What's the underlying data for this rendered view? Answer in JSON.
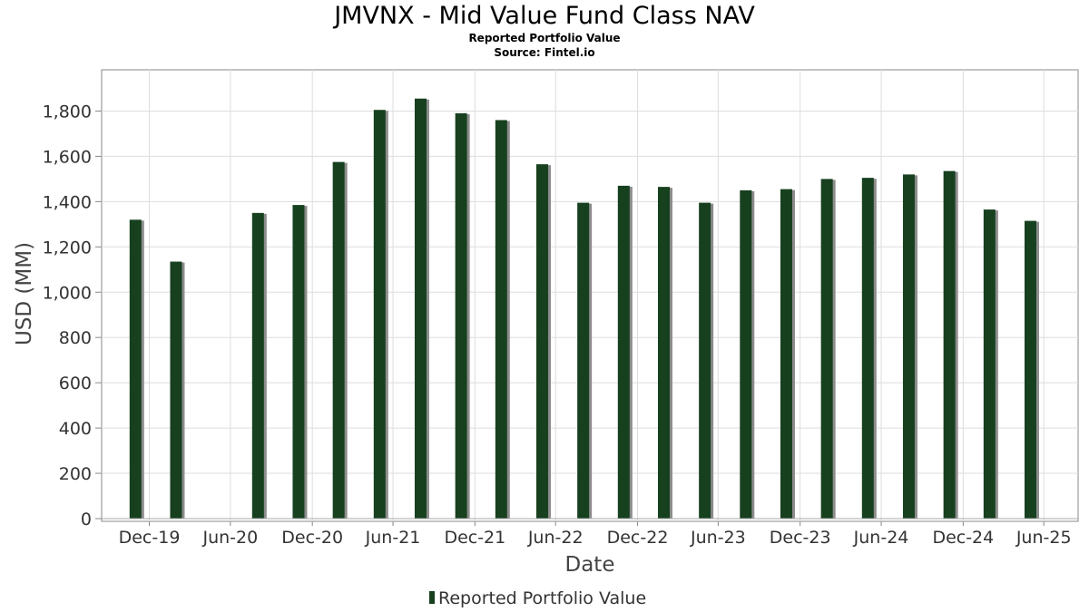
{
  "chart_data": {
    "type": "bar",
    "title": "JMVNX - Mid Value Fund Class NAV",
    "subtitle": "Reported Portfolio Value",
    "source": "Source: Fintel.io",
    "xlabel": "Date",
    "ylabel": "USD (MM)",
    "ylim": [
      0,
      1950
    ],
    "yticks": [
      0,
      200,
      400,
      600,
      800,
      1000,
      1200,
      1400,
      1600,
      1800
    ],
    "ytick_labels": [
      "0",
      "200",
      "400",
      "600",
      "800",
      "1,000",
      "1,200",
      "1,400",
      "1,600",
      "1,800"
    ],
    "xlim": [
      "2019-09-15",
      "2025-09-15"
    ],
    "xticks": [
      "2019-12-31",
      "2020-06-30",
      "2020-12-31",
      "2021-06-30",
      "2021-12-31",
      "2022-06-30",
      "2022-12-31",
      "2023-06-30",
      "2023-12-31",
      "2024-06-30",
      "2024-12-31",
      "2025-06-30"
    ],
    "xtick_labels": [
      "Dec-19",
      "Jun-20",
      "Dec-20",
      "Jun-21",
      "Dec-21",
      "Jun-22",
      "Dec-22",
      "Jun-23",
      "Dec-23",
      "Jun-24",
      "Dec-24",
      "Jun-25"
    ],
    "grid": true,
    "legend_position": "bottom-center",
    "series": [
      {
        "name": "Reported Portfolio Value",
        "color": "#17401f",
        "x": [
          "2019-11-30",
          "2020-02-29",
          "2020-08-31",
          "2020-11-30",
          "2021-02-28",
          "2021-05-31",
          "2021-08-31",
          "2021-11-30",
          "2022-02-28",
          "2022-05-31",
          "2022-08-31",
          "2022-11-30",
          "2023-02-28",
          "2023-05-31",
          "2023-08-31",
          "2023-11-30",
          "2024-02-29",
          "2024-05-31",
          "2024-08-31",
          "2024-11-30",
          "2025-02-28",
          "2025-05-31"
        ],
        "values": [
          1320,
          1135,
          1350,
          1385,
          1575,
          1805,
          1855,
          1790,
          1760,
          1565,
          1395,
          1470,
          1465,
          1395,
          1450,
          1455,
          1500,
          1505,
          1520,
          1535,
          1365,
          1315
        ]
      }
    ]
  }
}
